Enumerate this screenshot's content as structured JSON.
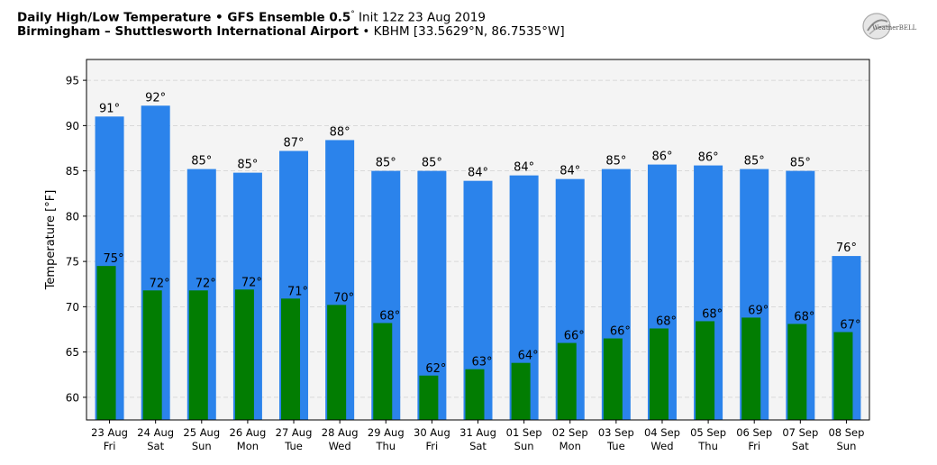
{
  "header": {
    "title_bold": "Daily High/Low Temperature • GFS Ensemble 0.5",
    "title_sup": "°",
    "title_rest": " Init 12z 23 Aug 2019",
    "location_bold": "Birmingham – Shuttlesworth International Airport",
    "location_rest": " • KBHM [33.5629°N, 86.7535°W]"
  },
  "logo": {
    "text": "WeatherBELL",
    "icon": "weatherbell-logo-icon"
  },
  "colors": {
    "high": "#2b83eb",
    "low": "#027d02",
    "plot_bg": "#f4f4f4",
    "grid": "#d0d0d0"
  },
  "chart_data": {
    "type": "bar",
    "ylabel": "Temperature [°F]",
    "ylim": [
      57.5,
      97.3
    ],
    "yticks": [
      60,
      65,
      70,
      75,
      80,
      85,
      90,
      95
    ],
    "grid": true,
    "categories": [
      [
        "23 Aug",
        "Fri"
      ],
      [
        "24 Aug",
        "Sat"
      ],
      [
        "25 Aug",
        "Sun"
      ],
      [
        "26 Aug",
        "Mon"
      ],
      [
        "27 Aug",
        "Tue"
      ],
      [
        "28 Aug",
        "Wed"
      ],
      [
        "29 Aug",
        "Thu"
      ],
      [
        "30 Aug",
        "Fri"
      ],
      [
        "31 Aug",
        "Sat"
      ],
      [
        "01 Sep",
        "Sun"
      ],
      [
        "02 Sep",
        "Mon"
      ],
      [
        "03 Sep",
        "Tue"
      ],
      [
        "04 Sep",
        "Wed"
      ],
      [
        "05 Sep",
        "Thu"
      ],
      [
        "06 Sep",
        "Fri"
      ],
      [
        "07 Sep",
        "Sat"
      ],
      [
        "08 Sep",
        "Sun"
      ]
    ],
    "series": [
      {
        "key": "high",
        "values": [
          91.0,
          92.2,
          85.2,
          84.8,
          87.2,
          88.4,
          85.0,
          85.0,
          83.9,
          84.5,
          84.1,
          85.2,
          85.7,
          85.6,
          85.2,
          85.0,
          75.6
        ],
        "labels": [
          "91°",
          "92°",
          "85°",
          "85°",
          "87°",
          "88°",
          "85°",
          "85°",
          "84°",
          "84°",
          "84°",
          "85°",
          "86°",
          "86°",
          "85°",
          "85°",
          "76°"
        ]
      },
      {
        "key": "low",
        "values": [
          74.5,
          71.8,
          71.8,
          71.9,
          70.9,
          70.2,
          68.2,
          62.4,
          63.1,
          63.8,
          66.0,
          66.5,
          67.6,
          68.4,
          68.8,
          68.1,
          67.2
        ],
        "labels": [
          "75°",
          "72°",
          "72°",
          "72°",
          "71°",
          "70°",
          "68°",
          "62°",
          "63°",
          "64°",
          "66°",
          "66°",
          "68°",
          "68°",
          "69°",
          "68°",
          "67°"
        ]
      }
    ]
  }
}
